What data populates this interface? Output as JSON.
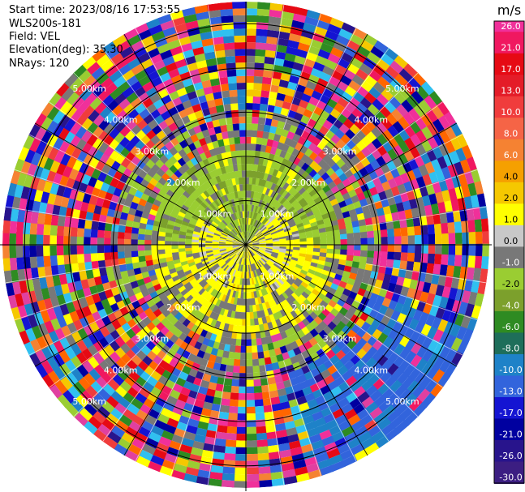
{
  "info": {
    "start_time": "Start time: 2023/08/16 17:53:55",
    "instrument": "WLS200s-181",
    "field": "Field: VEL",
    "elevation": "Elevation(deg): 35.30",
    "nrays": "NRays: 120"
  },
  "colorbar": {
    "unit": "m/s",
    "ticks": [
      "26.0",
      "21.0",
      "17.0",
      "13.0",
      "10.0",
      "8.0",
      "6.0",
      "4.0",
      "2.0",
      "1.0",
      "0.0",
      "-1.0",
      "-2.0",
      "-4.0",
      "-6.0",
      "-8.0",
      "-10.0",
      "-13.0",
      "-17.0",
      "-21.0",
      "-26.0",
      "-30.0"
    ],
    "colors": [
      "#f0309a",
      "#f01860",
      "#e60a14",
      "#e41c28",
      "#f03c3c",
      "#f56446",
      "#f58232",
      "#f5a000",
      "#f5c800",
      "#ffff00",
      "#c8c8c8",
      "#787878",
      "#9acd32",
      "#7ca02c",
      "#2e8b22",
      "#1e6e5a",
      "#1e82c8",
      "#3264dc",
      "#1414d2",
      "#0000a0",
      "#28148c",
      "#3c1e82"
    ]
  },
  "chart_data": {
    "type": "ppi",
    "field": "VEL",
    "n_rays": 120,
    "range_rings_km": [
      1.0,
      2.0,
      3.0,
      4.0,
      5.0
    ],
    "range_ring_labels": [
      "1.00km",
      "2.00km",
      "3.00km",
      "4.00km",
      "5.00km"
    ],
    "unit": "m/s",
    "value_range": [
      -30.0,
      26.0
    ]
  }
}
